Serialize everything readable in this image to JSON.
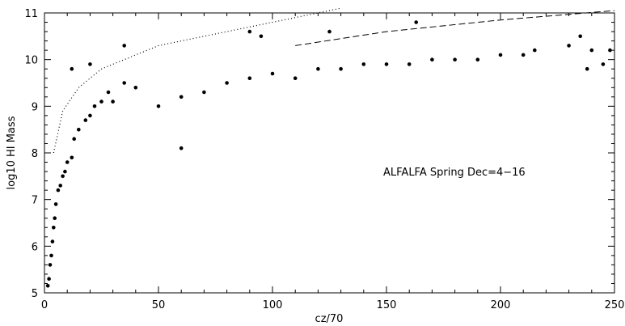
{
  "chart_data": {
    "type": "scatter",
    "title": "",
    "xlabel": "cz/70",
    "ylabel": "log10  HI Mass",
    "annotation": "ALFALFA Spring Dec=4−16",
    "xlim": [
      0,
      250
    ],
    "ylim": [
      5,
      11
    ],
    "x_ticks": [
      0,
      50,
      100,
      150,
      200,
      250
    ],
    "y_ticks": [
      5,
      6,
      7,
      8,
      9,
      10,
      11
    ],
    "grid": false,
    "legend": "none",
    "marker_color": "#000000",
    "gaps_in_x": [
      [
        218,
        225
      ]
    ],
    "series": [
      {
        "points": [
          [
            1.5,
            5.15
          ],
          [
            2,
            5.3
          ],
          [
            2.5,
            5.6
          ],
          [
            3,
            5.8
          ],
          [
            3.5,
            6.1
          ],
          [
            4,
            6.4
          ],
          [
            4.5,
            6.6
          ],
          [
            5,
            6.9
          ],
          [
            6,
            7.2
          ],
          [
            7,
            7.3
          ],
          [
            8,
            7.5
          ],
          [
            9,
            7.6
          ],
          [
            10,
            7.8
          ],
          [
            12,
            7.9
          ],
          [
            13,
            8.3
          ],
          [
            15,
            8.5
          ],
          [
            18,
            8.7
          ],
          [
            20,
            8.8
          ],
          [
            22,
            9.0
          ],
          [
            25,
            9.1
          ],
          [
            28,
            9.3
          ],
          [
            30,
            9.1
          ],
          [
            35,
            9.5
          ],
          [
            40,
            9.4
          ],
          [
            12,
            9.8
          ],
          [
            20,
            9.9
          ],
          [
            35,
            10.3
          ],
          [
            60,
            8.1
          ],
          [
            90,
            10.6
          ],
          [
            95,
            10.5
          ],
          [
            125,
            10.6
          ],
          [
            163,
            10.8
          ],
          [
            50,
            9.0
          ],
          [
            60,
            9.2
          ],
          [
            70,
            9.3
          ],
          [
            80,
            9.5
          ],
          [
            90,
            9.6
          ],
          [
            100,
            9.7
          ],
          [
            110,
            9.6
          ],
          [
            120,
            9.8
          ],
          [
            130,
            9.8
          ],
          [
            140,
            9.9
          ],
          [
            150,
            9.9
          ],
          [
            160,
            9.9
          ],
          [
            170,
            10.0
          ],
          [
            180,
            10.0
          ],
          [
            190,
            10.0
          ],
          [
            200,
            10.1
          ],
          [
            210,
            10.1
          ],
          [
            215,
            10.2
          ],
          [
            230,
            10.3
          ],
          [
            240,
            10.2
          ],
          [
            248,
            10.2
          ],
          [
            245,
            9.9
          ],
          [
            235,
            10.5
          ],
          [
            238,
            9.8
          ]
        ]
      }
    ],
    "curves": [
      {
        "style": "dotted",
        "points": [
          [
            4,
            8.0
          ],
          [
            8,
            8.9
          ],
          [
            15,
            9.4
          ],
          [
            25,
            9.8
          ],
          [
            50,
            10.3
          ],
          [
            100,
            10.8
          ],
          [
            130,
            11.1
          ]
        ]
      },
      {
        "style": "dashed",
        "points": [
          [
            110,
            10.3
          ],
          [
            150,
            10.6
          ],
          [
            200,
            10.85
          ],
          [
            250,
            11.05
          ]
        ]
      }
    ]
  }
}
